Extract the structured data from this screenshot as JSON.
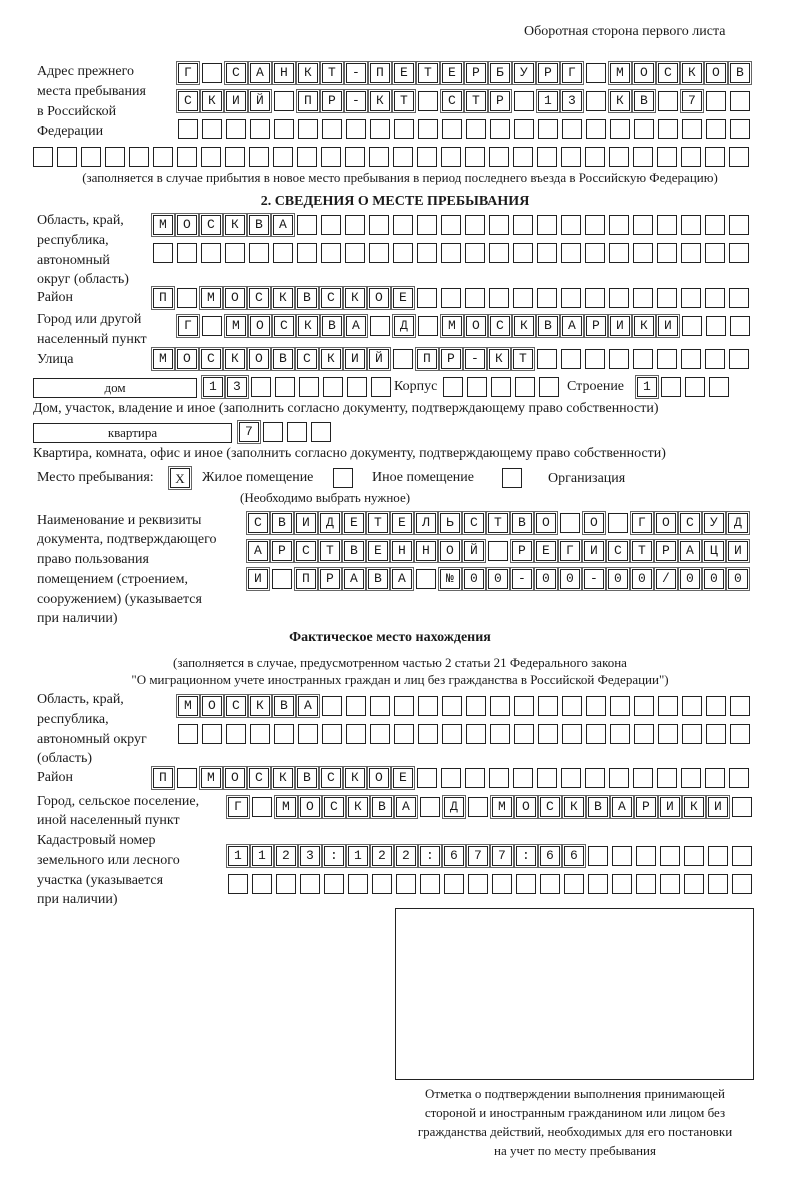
{
  "header": {
    "page_side": "Оборотная сторона первого листа"
  },
  "previous_address": {
    "label_lines": [
      "Адрес прежнего",
      "места пребывания",
      "в Российской",
      "Федерации"
    ],
    "rows": [
      "Г САНКТ-ПЕТЕРБУРГ МОСКОВ",
      "СКИЙ ПР-КТ СТР 13 КВ 7",
      "",
      ""
    ],
    "note": "(заполняется в случае прибытия в новое место пребывания в период последнего въезда в Российскую Федерацию)"
  },
  "section2": {
    "title": "2. СВЕДЕНИЯ О МЕСТЕ ПРЕБЫВАНИЯ",
    "region": {
      "label_lines": [
        "Область, край,",
        "республика,",
        "автономный",
        "округ (область)"
      ],
      "rows": [
        "МОСКВА",
        ""
      ]
    },
    "district": {
      "label": "Район",
      "value": "П МОСКВСКОЕ"
    },
    "city": {
      "label_lines": [
        "Город или другой",
        "населенный пункт"
      ],
      "value": "Г МОСКВА Д МОСКВАРИКИ"
    },
    "street": {
      "label": "Улица",
      "value": "МОСКОВСКИЙ ПР-КТ"
    },
    "house": {
      "type": "дом",
      "number": "13",
      "korpus_label": "Корпус",
      "korpus": "",
      "building_label": "Строение",
      "building": "1",
      "note": "Дом, участок, владение и иное (заполнить согласно документу, подтверждающему право собственности)"
    },
    "apartment": {
      "type": "квартира",
      "number": "7",
      "note": "Квартира, комната, офис и иное (заполнить согласно документу, подтверждающему право собственности)"
    },
    "stay_place": {
      "label": "Место пребывания:",
      "options": [
        {
          "label": "Жилое помещение",
          "mark": "Х",
          "checked": true
        },
        {
          "label": "Иное помещение",
          "mark": "",
          "checked": false
        },
        {
          "label": "Организация",
          "mark": "",
          "checked": false
        }
      ],
      "hint": "(Необходимо выбрать нужное)"
    },
    "document": {
      "label_lines": [
        "Наименование и реквизиты",
        "документа, подтверждающего",
        "право пользования",
        "помещением (строением,",
        "сооружением) (указывается",
        "при наличии)"
      ],
      "rows": [
        "СВИДЕТЕЛЬСТВО О ГОСУД",
        "АРСТВЕННОЙ РЕГИСТРАЦИ",
        "И ПРАВА №00-00-00/000"
      ]
    }
  },
  "actual": {
    "title": "Фактическое место нахождения",
    "note_lines": [
      "(заполняется в случае, предусмотренном частью 2 статьи 21 Федерального закона",
      "\"О миграционном учете иностранных граждан и лиц без гражданства в Российской Федерации\")"
    ],
    "region": {
      "label_lines": [
        "Область, край,",
        "республика,",
        "автономный округ",
        "(область)"
      ],
      "rows": [
        "МОСКВА",
        ""
      ]
    },
    "district": {
      "label": "Район",
      "value": "П МОСКВСКОЕ"
    },
    "city": {
      "label_lines": [
        "Город, сельское поселение,",
        "иной населенный пункт"
      ],
      "value": "Г МОСКВА Д МОСКВАРИКИ"
    },
    "cadastral": {
      "label_lines": [
        "Кадастровый номер",
        "земельного или лесного",
        "участка (указывается",
        "при наличии)"
      ],
      "rows": [
        "1123:122:677:66",
        ""
      ]
    }
  },
  "confirmation": {
    "caption_lines": [
      "Отметка о подтверждении выполнения принимающей",
      "стороной и иностранным гражданином или лицом без",
      "гражданства действий, необходимых для его постановки",
      "на учет по месту пребывания"
    ]
  }
}
